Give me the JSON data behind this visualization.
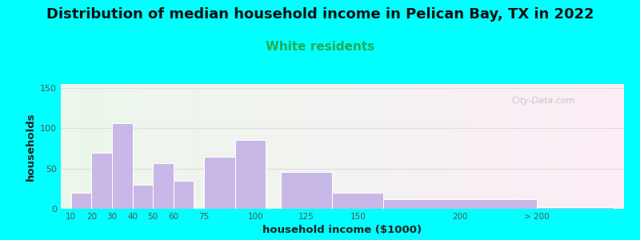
{
  "title": "Distribution of median household income in Pelican Bay, TX in 2022",
  "subtitle": "White residents",
  "xlabel": "household income ($1000)",
  "ylabel": "households",
  "title_fontsize": 13,
  "subtitle_fontsize": 11,
  "subtitle_color": "#22aa55",
  "bar_color": "#c8b8e8",
  "bar_edgecolor": "#ffffff",
  "background_outer": "#00ffff",
  "yticks": [
    0,
    50,
    100,
    150
  ],
  "ylim": [
    0,
    155
  ],
  "bar_lefts": [
    10,
    20,
    30,
    40,
    50,
    60,
    75,
    90,
    112.5,
    137.5,
    162.5,
    237.5
  ],
  "bar_heights": [
    20,
    70,
    106,
    30,
    57,
    35,
    65,
    85,
    46,
    20,
    12,
    2
  ],
  "bar_widths": [
    10,
    10,
    10,
    10,
    10,
    10,
    15,
    15,
    25,
    25,
    75,
    37.5
  ],
  "xtick_labels": [
    "10",
    "20",
    "30",
    "40",
    "50",
    "60",
    "75",
    "100",
    "125",
    "150",
    "200",
    "> 200"
  ],
  "xtick_positions": [
    10,
    20,
    30,
    40,
    50,
    60,
    75,
    100,
    125,
    150,
    200,
    237.5
  ],
  "xlim": [
    5,
    280
  ],
  "watermark": "City-Data.com",
  "grid_color": "#dddddd",
  "tick_color": "#555555"
}
